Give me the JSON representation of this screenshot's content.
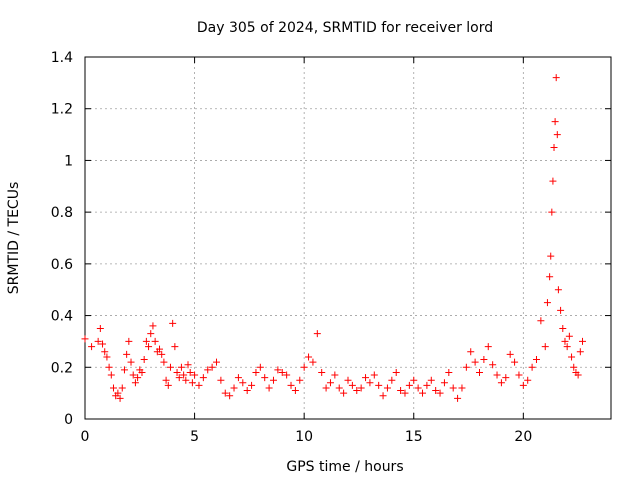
{
  "chart_data": {
    "type": "scatter",
    "title": "Day 305 of 2024, SRMTID for receiver lord",
    "xlabel": "GPS time / hours",
    "ylabel": "SRMTID / TECUs",
    "xlim": [
      0,
      24
    ],
    "ylim": [
      0,
      1.4
    ],
    "xticks": [
      0,
      5,
      10,
      15,
      20
    ],
    "yticks": [
      0,
      0.2,
      0.4,
      0.6,
      0.8,
      1,
      1.2,
      1.4
    ],
    "xtick_labels": [
      "0",
      "5",
      "10",
      "15",
      "20"
    ],
    "ytick_labels": [
      "0",
      "0.2",
      "0.4",
      "0.6",
      "0.8",
      "1",
      "1.2",
      "1.4"
    ],
    "grid": true,
    "marker": "+",
    "color": "#ff0000",
    "series": [
      {
        "name": "SRMTID",
        "x": [
          0.0,
          0.3,
          0.6,
          0.7,
          0.8,
          0.9,
          1.0,
          1.1,
          1.2,
          1.3,
          1.4,
          1.5,
          1.6,
          1.7,
          1.8,
          1.9,
          2.0,
          2.1,
          2.2,
          2.3,
          2.4,
          2.5,
          2.6,
          2.7,
          2.8,
          2.9,
          3.0,
          3.1,
          3.2,
          3.3,
          3.4,
          3.5,
          3.6,
          3.7,
          3.8,
          3.9,
          4.0,
          4.1,
          4.2,
          4.3,
          4.4,
          4.5,
          4.6,
          4.7,
          4.8,
          4.9,
          5.0,
          5.2,
          5.4,
          5.6,
          5.8,
          6.0,
          6.2,
          6.4,
          6.6,
          6.8,
          7.0,
          7.2,
          7.4,
          7.6,
          7.8,
          8.0,
          8.2,
          8.4,
          8.6,
          8.8,
          9.0,
          9.2,
          9.4,
          9.6,
          9.8,
          10.0,
          10.2,
          10.4,
          10.6,
          10.8,
          11.0,
          11.2,
          11.4,
          11.6,
          11.8,
          12.0,
          12.2,
          12.4,
          12.6,
          12.8,
          13.0,
          13.2,
          13.4,
          13.6,
          13.8,
          14.0,
          14.2,
          14.4,
          14.6,
          14.8,
          15.0,
          15.2,
          15.4,
          15.6,
          15.8,
          16.0,
          16.2,
          16.4,
          16.6,
          16.8,
          17.0,
          17.2,
          17.4,
          17.6,
          17.8,
          18.0,
          18.2,
          18.4,
          18.6,
          18.8,
          19.0,
          19.2,
          19.4,
          19.6,
          19.8,
          20.0,
          20.2,
          20.4,
          20.6,
          20.8,
          21.0,
          21.1,
          21.2,
          21.25,
          21.3,
          21.35,
          21.4,
          21.45,
          21.5,
          21.55,
          21.6,
          21.7,
          21.8,
          21.9,
          22.0,
          22.1,
          22.2,
          22.3,
          22.4,
          22.5,
          22.6,
          22.7
        ],
        "y": [
          0.31,
          0.28,
          0.3,
          0.35,
          0.29,
          0.26,
          0.24,
          0.2,
          0.17,
          0.12,
          0.09,
          0.1,
          0.08,
          0.12,
          0.19,
          0.25,
          0.3,
          0.22,
          0.17,
          0.14,
          0.16,
          0.19,
          0.18,
          0.23,
          0.3,
          0.28,
          0.33,
          0.36,
          0.3,
          0.26,
          0.27,
          0.25,
          0.22,
          0.15,
          0.13,
          0.2,
          0.37,
          0.28,
          0.18,
          0.16,
          0.2,
          0.17,
          0.15,
          0.21,
          0.18,
          0.14,
          0.17,
          0.13,
          0.16,
          0.19,
          0.2,
          0.22,
          0.15,
          0.1,
          0.09,
          0.12,
          0.16,
          0.14,
          0.11,
          0.13,
          0.18,
          0.2,
          0.16,
          0.12,
          0.15,
          0.19,
          0.18,
          0.17,
          0.13,
          0.11,
          0.15,
          0.2,
          0.24,
          0.22,
          0.33,
          0.18,
          0.12,
          0.14,
          0.17,
          0.12,
          0.1,
          0.15,
          0.13,
          0.11,
          0.12,
          0.16,
          0.14,
          0.17,
          0.13,
          0.09,
          0.12,
          0.15,
          0.18,
          0.11,
          0.1,
          0.13,
          0.15,
          0.12,
          0.1,
          0.13,
          0.15,
          0.11,
          0.1,
          0.14,
          0.18,
          0.12,
          0.08,
          0.12,
          0.2,
          0.26,
          0.22,
          0.18,
          0.23,
          0.28,
          0.21,
          0.17,
          0.14,
          0.16,
          0.25,
          0.22,
          0.17,
          0.13,
          0.15,
          0.2,
          0.23,
          0.38,
          0.28,
          0.45,
          0.55,
          0.63,
          0.8,
          0.92,
          1.05,
          1.15,
          1.32,
          1.1,
          0.5,
          0.42,
          0.35,
          0.3,
          0.28,
          0.32,
          0.24,
          0.2,
          0.18,
          0.17,
          0.26,
          0.3
        ]
      }
    ]
  }
}
